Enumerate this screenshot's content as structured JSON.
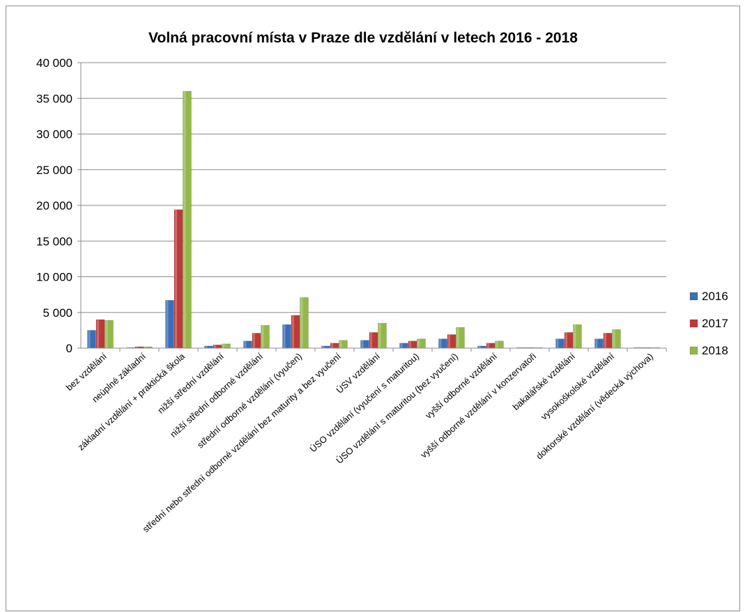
{
  "chart_data": {
    "type": "bar",
    "title": "Volná pracovní místa v Praze dle vzdělání v letech 2016 - 2018",
    "xlabel": "",
    "ylabel": "",
    "ylim": [
      0,
      40000
    ],
    "yticks": [
      "0",
      "5 000",
      "10 000",
      "15 000",
      "20 000",
      "25 000",
      "30 000",
      "35 000",
      "40 000"
    ],
    "grid": true,
    "legend_position": "right",
    "categories": [
      "bez vzdělání",
      "neúplné základní",
      "základní vzdělání + praktická škola",
      "nižší střední vzdělání",
      "nižší střední odborné vzdělání",
      "střední odborné vzdělání (vyučen)",
      "střední nebo střední odborné vzdělání bez maturity a bez vyučení",
      "ÚSV vzdělání",
      "ÚSO vzdělání (vyučení s maturitou)",
      "ÚSO vzdělání s maturitou (bez vyučení)",
      "vyšší odborné vzdělání",
      "vyšší odborné vzdělání v konzervatoři",
      "bakalářské vzdělání",
      "vysokoškolské vzdělání",
      "doktorské vzdělání (vědecká výchova)"
    ],
    "series": [
      {
        "name": "2016",
        "color": "#3a6fb6",
        "values": [
          2500,
          50,
          6700,
          300,
          1000,
          3300,
          300,
          1100,
          700,
          1300,
          300,
          30,
          1300,
          1300,
          30
        ]
      },
      {
        "name": "2017",
        "color": "#be3a37",
        "values": [
          4000,
          200,
          19400,
          450,
          2100,
          4600,
          700,
          2200,
          1000,
          1900,
          700,
          30,
          2200,
          2100,
          30
        ]
      },
      {
        "name": "2018",
        "color": "#93b84a",
        "values": [
          3900,
          200,
          36000,
          600,
          3200,
          7100,
          1100,
          3500,
          1300,
          2900,
          1000,
          30,
          3300,
          2600,
          30
        ]
      }
    ]
  }
}
